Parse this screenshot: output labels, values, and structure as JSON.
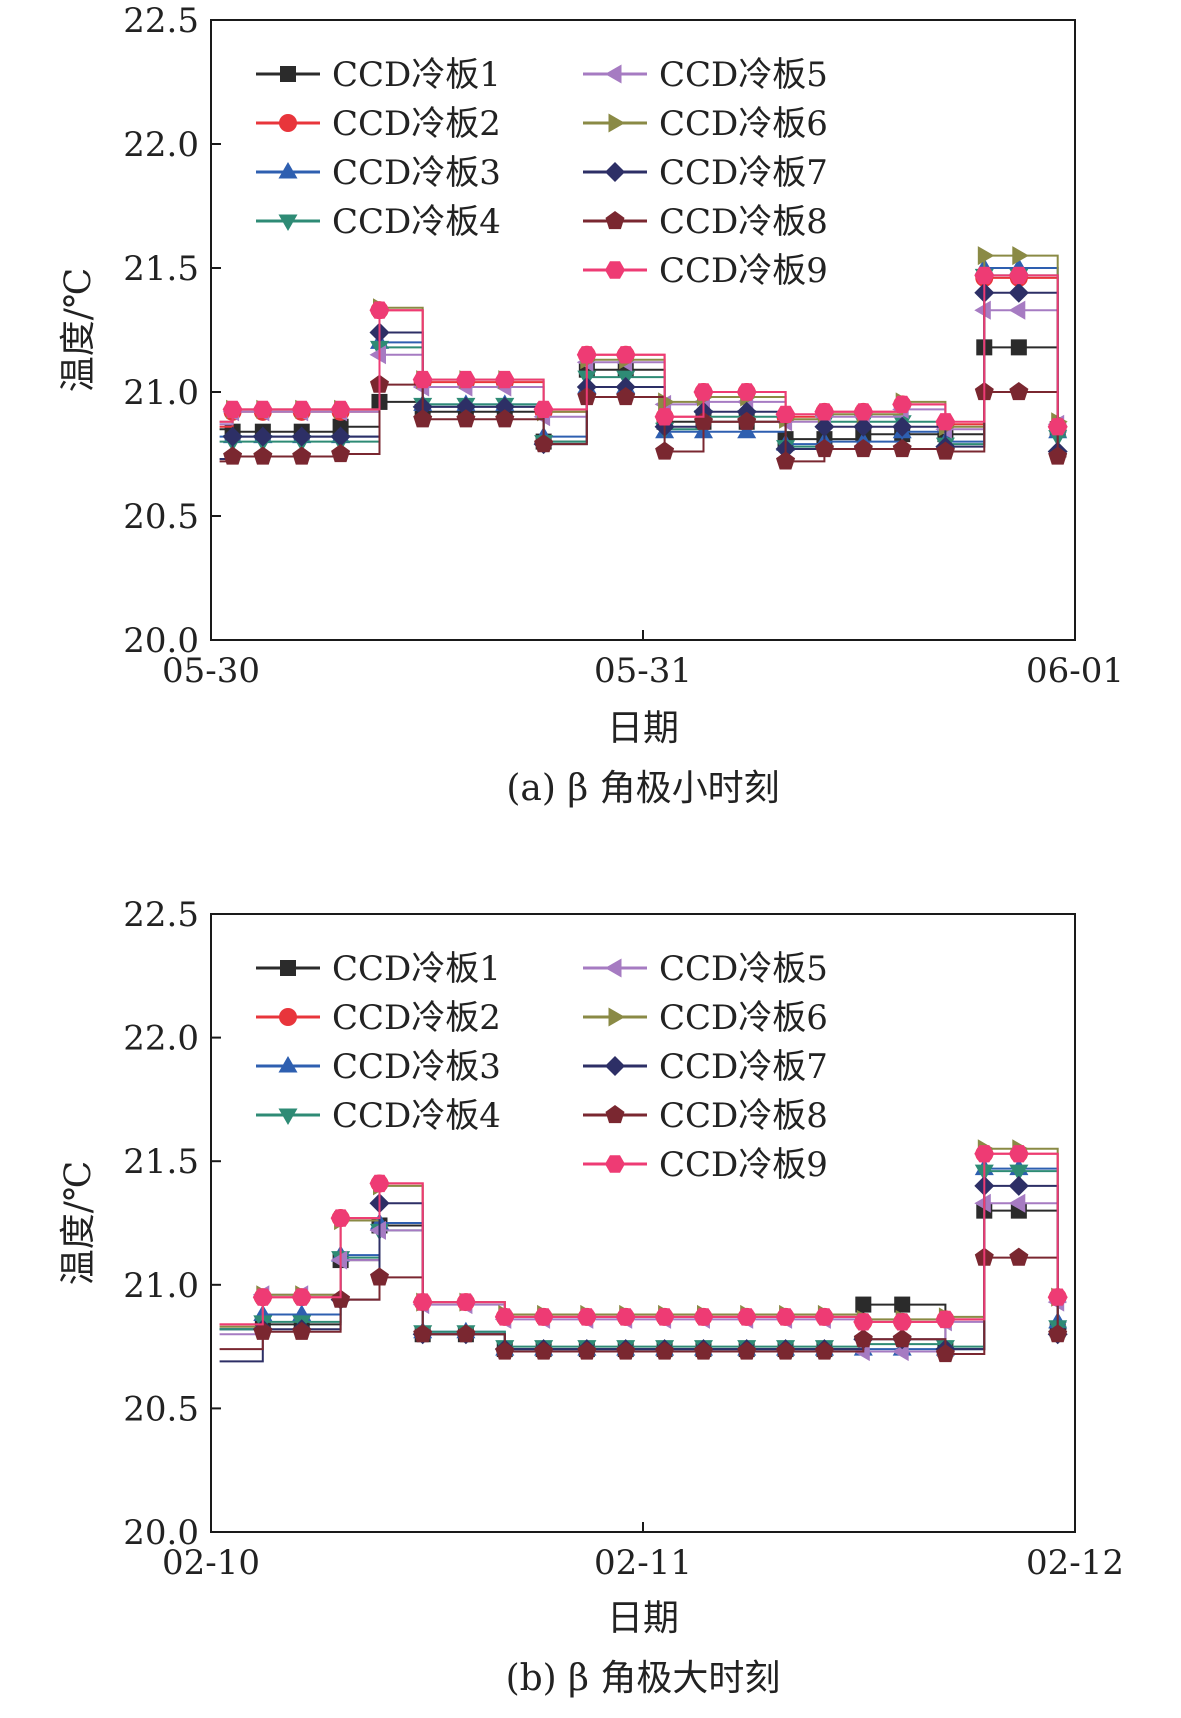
{
  "chart_data": [
    {
      "type": "line",
      "caption": "(a) β 角极小时刻",
      "xlabel": "日期",
      "ylabel": "温度/℃",
      "x_ticks": [
        "05-30",
        "05-31",
        "06-01"
      ],
      "xlim": [
        "05-30",
        "06-01"
      ],
      "ylim": [
        20.0,
        22.5
      ],
      "y_ticks": [
        "20.0",
        "20.5",
        "21.0",
        "21.5",
        "22.0",
        "22.5"
      ],
      "legend_position": "top-left",
      "grid": false,
      "x_unit": "days",
      "x": [
        0.02,
        0.05,
        0.12,
        0.21,
        0.3,
        0.39,
        0.49,
        0.59,
        0.68,
        0.77,
        0.87,
        0.96,
        1.05,
        1.14,
        1.24,
        1.33,
        1.42,
        1.51,
        1.6,
        1.7,
        1.79,
        1.87,
        1.96,
        1.98
      ],
      "series": [
        {
          "name": "CCD冷板1",
          "color": "#2b2b2b",
          "marker": "square",
          "values": [
            20.85,
            20.84,
            20.84,
            20.84,
            20.86,
            20.96,
            20.92,
            20.92,
            20.92,
            20.8,
            21.09,
            21.09,
            20.88,
            20.88,
            20.88,
            20.81,
            20.81,
            20.83,
            20.83,
            20.83,
            21.18,
            21.18,
            20.85,
            20.85
          ]
        },
        {
          "name": "CCD冷板2",
          "color": "#e8353b",
          "marker": "circle",
          "values": [
            20.86,
            20.92,
            20.92,
            20.92,
            20.92,
            21.33,
            21.04,
            21.04,
            21.04,
            20.92,
            21.15,
            21.15,
            20.9,
            21.0,
            21.0,
            20.9,
            20.92,
            20.92,
            20.95,
            20.87,
            21.46,
            21.46,
            20.86,
            20.86
          ]
        },
        {
          "name": "CCD冷板3",
          "color": "#2e5fb0",
          "marker": "triangle-up",
          "values": [
            20.82,
            20.82,
            20.82,
            20.82,
            20.82,
            21.2,
            20.95,
            20.95,
            20.95,
            20.82,
            21.02,
            21.02,
            20.84,
            20.84,
            20.84,
            20.79,
            20.8,
            20.8,
            20.84,
            20.8,
            21.5,
            21.5,
            20.84,
            20.84
          ]
        },
        {
          "name": "CCD冷板4",
          "color": "#2e8b75",
          "marker": "triangle-down",
          "values": [
            20.8,
            20.8,
            20.8,
            20.8,
            20.8,
            21.18,
            20.95,
            20.95,
            20.95,
            20.8,
            21.06,
            21.06,
            20.85,
            20.9,
            20.9,
            20.78,
            20.88,
            20.88,
            20.88,
            20.79,
            21.47,
            21.47,
            20.82,
            20.82
          ]
        },
        {
          "name": "CCD冷板5",
          "color": "#a67bc2",
          "marker": "triangle-left",
          "values": [
            20.87,
            20.92,
            20.92,
            20.92,
            20.92,
            21.15,
            21.02,
            21.02,
            21.02,
            20.9,
            21.12,
            21.12,
            20.95,
            20.96,
            20.96,
            20.88,
            20.9,
            20.9,
            20.93,
            20.85,
            21.33,
            21.33,
            20.87,
            20.87
          ]
        },
        {
          "name": "CCD冷板6",
          "color": "#8a8a45",
          "marker": "triangle-right",
          "values": [
            20.88,
            20.93,
            20.93,
            20.93,
            20.93,
            21.34,
            21.05,
            21.05,
            21.05,
            20.92,
            21.13,
            21.13,
            20.96,
            20.98,
            20.98,
            20.89,
            20.91,
            20.91,
            20.96,
            20.86,
            21.55,
            21.55,
            20.88,
            20.88
          ]
        },
        {
          "name": "CCD冷板7",
          "color": "#2d2f66",
          "marker": "diamond",
          "values": [
            20.73,
            20.82,
            20.82,
            20.82,
            20.82,
            21.24,
            20.94,
            20.94,
            20.94,
            20.79,
            21.02,
            21.02,
            20.86,
            20.92,
            20.92,
            20.77,
            20.86,
            20.86,
            20.86,
            20.78,
            21.4,
            21.4,
            20.76,
            20.76
          ]
        },
        {
          "name": "CCD冷板8",
          "color": "#7a2730",
          "marker": "pentagon",
          "values": [
            20.72,
            20.74,
            20.74,
            20.74,
            20.75,
            21.03,
            20.89,
            20.89,
            20.89,
            20.79,
            20.98,
            20.98,
            20.76,
            20.88,
            20.88,
            20.72,
            20.77,
            20.77,
            20.77,
            20.76,
            21.0,
            21.0,
            20.74,
            20.74
          ]
        },
        {
          "name": "CCD冷板9",
          "color": "#ee3b74",
          "marker": "hexagon",
          "values": [
            20.88,
            20.93,
            20.93,
            20.93,
            20.93,
            21.33,
            21.05,
            21.05,
            21.05,
            20.93,
            21.15,
            21.15,
            20.9,
            21.0,
            21.0,
            20.91,
            20.92,
            20.92,
            20.95,
            20.88,
            21.47,
            21.47,
            20.86,
            20.86
          ]
        }
      ]
    },
    {
      "type": "line",
      "caption": "(b) β 角极大时刻",
      "xlabel": "日期",
      "ylabel": "温度/℃",
      "x_ticks": [
        "02-10",
        "02-11",
        "02-12"
      ],
      "xlim": [
        "02-10",
        "02-12"
      ],
      "ylim": [
        20.0,
        22.5
      ],
      "y_ticks": [
        "20.0",
        "20.5",
        "21.0",
        "21.5",
        "22.0",
        "22.5"
      ],
      "legend_position": "top-left",
      "grid": false,
      "x_unit": "days",
      "x": [
        0.02,
        0.12,
        0.21,
        0.3,
        0.39,
        0.49,
        0.59,
        0.68,
        0.77,
        0.87,
        0.96,
        1.05,
        1.14,
        1.24,
        1.33,
        1.42,
        1.51,
        1.6,
        1.7,
        1.79,
        1.87,
        1.96,
        1.98
      ],
      "series": [
        {
          "name": "CCD冷板1",
          "color": "#2b2b2b",
          "marker": "square",
          "values": [
            20.82,
            20.84,
            20.84,
            21.1,
            21.24,
            20.8,
            20.8,
            20.74,
            20.74,
            20.74,
            20.74,
            20.74,
            20.74,
            20.74,
            20.74,
            20.74,
            20.92,
            20.92,
            20.74,
            21.3,
            21.3,
            20.82,
            20.82
          ]
        },
        {
          "name": "CCD冷板2",
          "color": "#e8353b",
          "marker": "circle",
          "values": [
            20.84,
            20.95,
            20.95,
            21.27,
            21.41,
            20.93,
            20.93,
            20.87,
            20.87,
            20.87,
            20.87,
            20.87,
            20.87,
            20.87,
            20.87,
            20.87,
            20.85,
            20.85,
            20.86,
            21.53,
            21.53,
            20.95,
            20.95
          ]
        },
        {
          "name": "CCD冷板3",
          "color": "#2e5fb0",
          "marker": "triangle-up",
          "values": [
            20.82,
            20.88,
            20.88,
            21.12,
            21.25,
            20.81,
            20.81,
            20.74,
            20.74,
            20.74,
            20.74,
            20.74,
            20.74,
            20.74,
            20.74,
            20.74,
            20.74,
            20.74,
            20.74,
            21.47,
            21.47,
            20.85,
            20.85
          ]
        },
        {
          "name": "CCD冷板4",
          "color": "#2e8b75",
          "marker": "triangle-down",
          "values": [
            20.82,
            20.85,
            20.85,
            21.11,
            21.22,
            20.81,
            20.81,
            20.75,
            20.75,
            20.75,
            20.75,
            20.75,
            20.75,
            20.75,
            20.75,
            20.75,
            20.76,
            20.76,
            20.75,
            21.46,
            21.46,
            20.83,
            20.83
          ]
        },
        {
          "name": "CCD冷板5",
          "color": "#a67bc2",
          "marker": "triangle-left",
          "values": [
            20.8,
            20.96,
            20.96,
            21.1,
            21.22,
            20.92,
            20.92,
            20.86,
            20.86,
            20.86,
            20.86,
            20.86,
            20.86,
            20.86,
            20.86,
            20.86,
            20.73,
            20.73,
            20.85,
            21.33,
            21.33,
            20.93,
            20.93
          ]
        },
        {
          "name": "CCD冷板6",
          "color": "#8a8a45",
          "marker": "triangle-right",
          "values": [
            20.83,
            20.96,
            20.96,
            21.26,
            21.4,
            20.93,
            20.93,
            20.88,
            20.88,
            20.88,
            20.88,
            20.88,
            20.88,
            20.88,
            20.88,
            20.88,
            20.86,
            20.86,
            20.87,
            21.55,
            21.55,
            20.95,
            20.95
          ]
        },
        {
          "name": "CCD冷板7",
          "color": "#2d2f66",
          "marker": "diamond",
          "values": [
            20.69,
            20.82,
            20.82,
            20.94,
            21.33,
            20.8,
            20.8,
            20.74,
            20.74,
            20.74,
            20.74,
            20.74,
            20.74,
            20.74,
            20.74,
            20.74,
            20.78,
            20.78,
            20.74,
            21.4,
            21.4,
            20.8,
            20.8
          ]
        },
        {
          "name": "CCD冷板8",
          "color": "#7a2730",
          "marker": "pentagon",
          "values": [
            20.74,
            20.81,
            20.81,
            20.94,
            21.03,
            20.8,
            20.8,
            20.73,
            20.73,
            20.73,
            20.73,
            20.73,
            20.73,
            20.73,
            20.73,
            20.73,
            20.78,
            20.78,
            20.72,
            21.11,
            21.11,
            20.8,
            20.8
          ]
        },
        {
          "name": "CCD冷板9",
          "color": "#ee3b74",
          "marker": "hexagon",
          "values": [
            20.84,
            20.95,
            20.95,
            21.27,
            21.41,
            20.93,
            20.93,
            20.87,
            20.87,
            20.87,
            20.87,
            20.87,
            20.87,
            20.87,
            20.87,
            20.87,
            20.85,
            20.85,
            20.86,
            21.53,
            21.53,
            20.95,
            20.95
          ]
        }
      ]
    }
  ]
}
